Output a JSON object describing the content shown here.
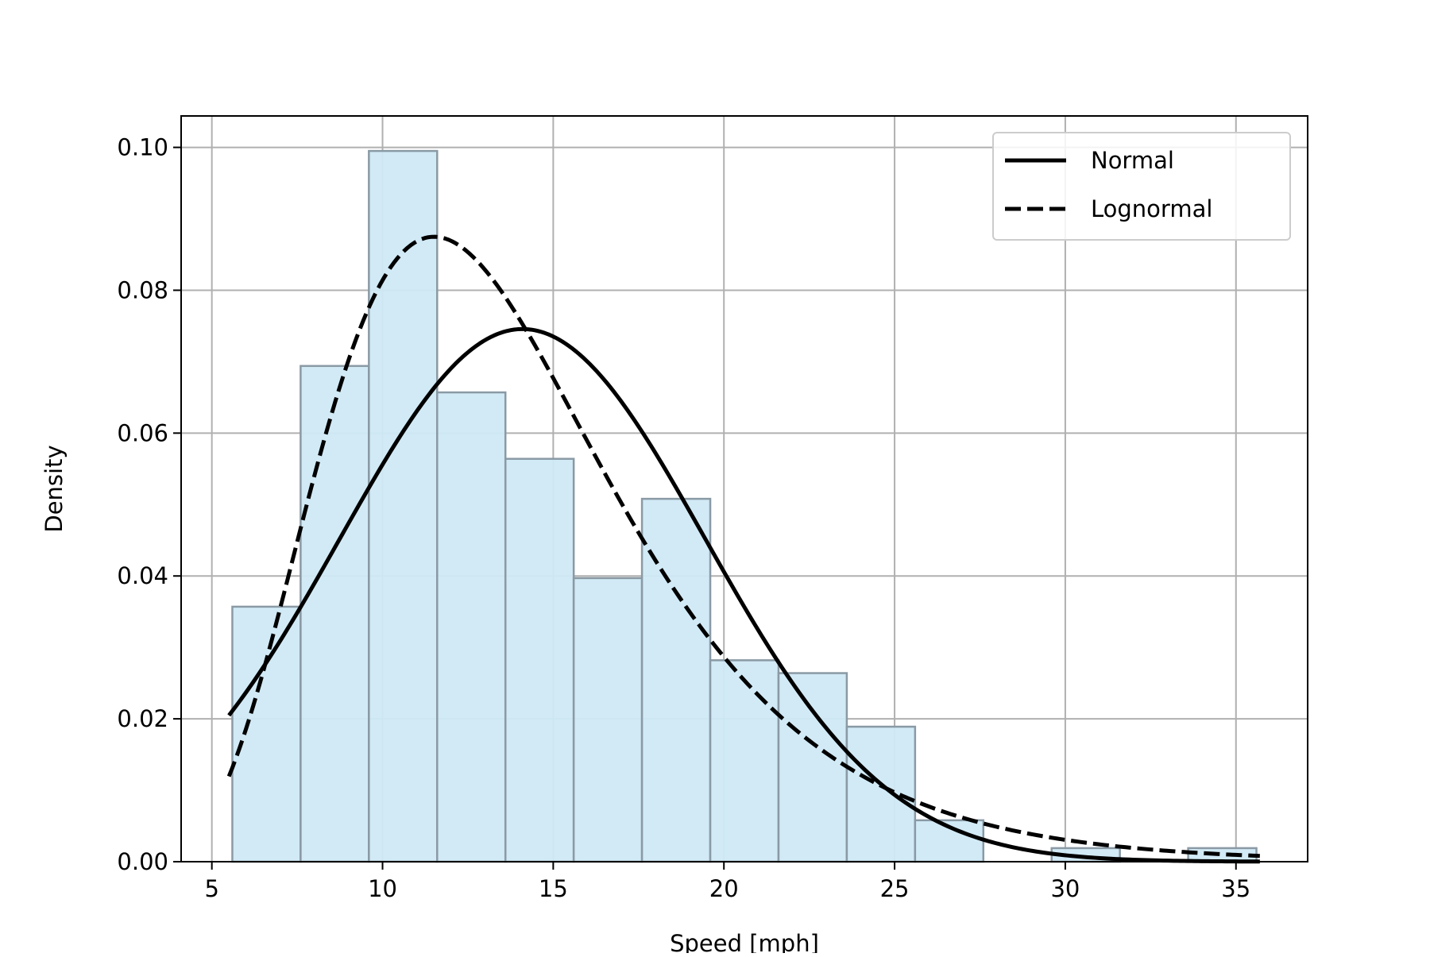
{
  "chart_data": {
    "type": "histogram",
    "xlabel": "Speed [mph]",
    "ylabel": "Density",
    "xlim": [
      4.1,
      37.1
    ],
    "ylim": [
      0,
      0.1044
    ],
    "xticks": [
      5,
      10,
      15,
      20,
      25,
      30,
      35
    ],
    "xtick_labels": [
      "5",
      "10",
      "15",
      "20",
      "25",
      "30",
      "35"
    ],
    "yticks": [
      0,
      0.02,
      0.04,
      0.06,
      0.08,
      0.1
    ],
    "ytick_labels": [
      "0.00",
      "0.02",
      "0.04",
      "0.06",
      "0.08",
      "0.10"
    ],
    "grid": true,
    "legend_position": "top-right",
    "bins": [
      {
        "x0": 5.6,
        "x1": 7.6,
        "value": 0.0357
      },
      {
        "x0": 7.6,
        "x1": 9.6,
        "value": 0.0694
      },
      {
        "x0": 9.6,
        "x1": 11.6,
        "value": 0.0995
      },
      {
        "x0": 11.6,
        "x1": 13.6,
        "value": 0.0657
      },
      {
        "x0": 13.6,
        "x1": 15.6,
        "value": 0.0564
      },
      {
        "x0": 15.6,
        "x1": 17.6,
        "value": 0.0397
      },
      {
        "x0": 17.6,
        "x1": 19.6,
        "value": 0.0508
      },
      {
        "x0": 19.6,
        "x1": 21.6,
        "value": 0.0282
      },
      {
        "x0": 21.6,
        "x1": 23.6,
        "value": 0.0264
      },
      {
        "x0": 23.6,
        "x1": 25.6,
        "value": 0.0189
      },
      {
        "x0": 25.6,
        "x1": 27.6,
        "value": 0.0058
      },
      {
        "x0": 27.6,
        "x1": 29.6,
        "value": 0.0
      },
      {
        "x0": 29.6,
        "x1": 31.6,
        "value": 0.0019
      },
      {
        "x0": 31.6,
        "x1": 33.6,
        "value": 0.0
      },
      {
        "x0": 33.6,
        "x1": 35.6,
        "value": 0.0019
      }
    ],
    "bar_fill": "#cfe9f5",
    "bar_edge": "#8a9aa5",
    "line_color": "#000000",
    "grid_color": "#b0b0b0",
    "series": [
      {
        "name": "Normal",
        "style": "solid",
        "distribution": "normal",
        "mean": 14.1,
        "std": 5.35,
        "x_range": [
          5.5,
          35.7
        ]
      },
      {
        "name": "Lognormal",
        "style": "dashed",
        "distribution": "lognormal",
        "mu": 2.58,
        "sigma": 0.37,
        "x_range": [
          5.5,
          35.7
        ]
      }
    ]
  }
}
